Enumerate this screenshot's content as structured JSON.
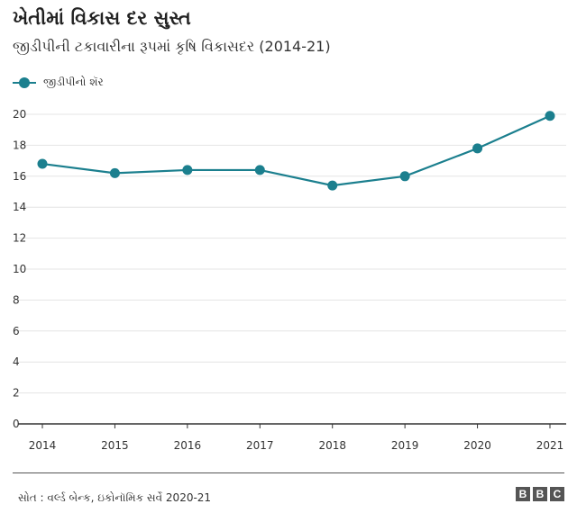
{
  "header": {
    "title": "ખેતીમાં વિકાસ દર સુસ્ત",
    "subtitle": "જીડીપીની ટકાવારીના રૂપમાં કૃષિ વિકાસદર (2014-21)"
  },
  "footer": {
    "source": "સોત : વર્લ્ડ બેન્ક, ઇકોનૉમિક સર્વે 2020-21",
    "logo_letters": [
      "B",
      "B",
      "C"
    ]
  },
  "colors": {
    "series": "#1b7f8e",
    "grid": "#e4e4e4",
    "axis": "#333333"
  },
  "chart_data": {
    "type": "line",
    "title": "ખેતીમાં વિકાસ દર સુસ્ત",
    "subtitle": "જીડીપીની ટકાવારીના રૂપમાં કૃષિ વિકાસદર (2014-21)",
    "xlabel": "",
    "ylabel": "",
    "x": [
      "2014",
      "2015",
      "2016",
      "2017",
      "2018",
      "2019",
      "2020",
      "2021"
    ],
    "ylim": [
      0,
      20
    ],
    "yticks": [
      0,
      2,
      4,
      6,
      8,
      10,
      12,
      14,
      16,
      18,
      20
    ],
    "grid": "horizontal",
    "legend": "top-left",
    "series": [
      {
        "name": "જીડીપીનો શૅર",
        "values": [
          16.8,
          16.2,
          16.4,
          16.4,
          15.4,
          16.0,
          17.8,
          19.9
        ]
      }
    ]
  }
}
